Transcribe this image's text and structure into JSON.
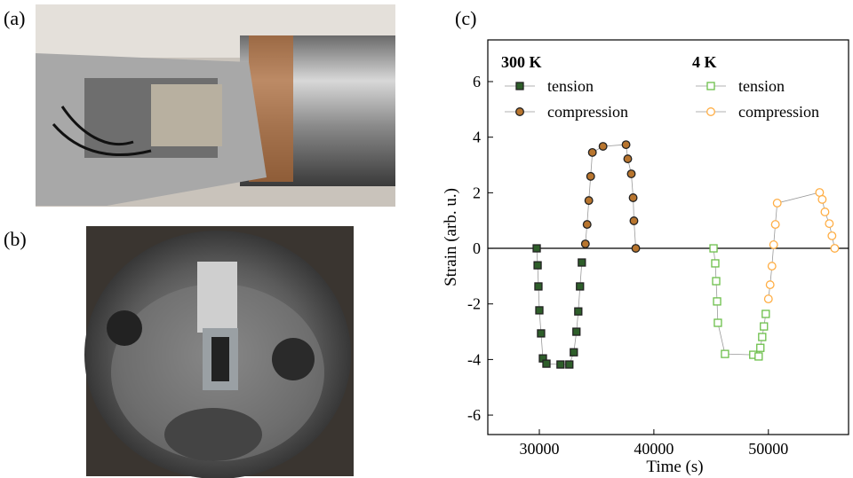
{
  "panel_labels": [
    "(a)",
    "(b)",
    "(c)"
  ],
  "chart_data": {
    "type": "scatter",
    "xlabel": "Time (s)",
    "ylabel": "Strain (arb. u.)",
    "xlim": [
      25500,
      57000
    ],
    "ylim": [
      -6.7,
      7.5
    ],
    "xticks": [
      30000,
      40000,
      50000
    ],
    "yticks": [
      -6,
      -4,
      -2,
      0,
      2,
      4,
      6
    ],
    "legend_titles": [
      "300 K",
      "4 K"
    ],
    "series": [
      {
        "name": "tension",
        "color": "#2e5e2a",
        "marker": "square",
        "filled": true,
        "x": [
          29770,
          29850,
          29920,
          30000,
          30150,
          30310,
          30620,
          31850,
          32620,
          33010,
          33240,
          33400,
          33550,
          33710
        ],
        "values": [
          0,
          -0.61,
          -1.37,
          -2.23,
          -3.06,
          -3.96,
          -4.15,
          -4.18,
          -4.18,
          -3.74,
          -3.0,
          -2.27,
          -1.37,
          -0.51
        ]
      },
      {
        "name": "compression",
        "color": "#b8752e",
        "marker": "circle",
        "filled": true,
        "x": [
          34020,
          34170,
          34320,
          34480,
          34630,
          35560,
          37570,
          37720,
          38030,
          38190,
          38260,
          38420
        ],
        "values": [
          0.16,
          0.86,
          1.72,
          2.59,
          3.45,
          3.67,
          3.73,
          3.22,
          2.68,
          1.82,
          0.99,
          0
        ]
      },
      {
        "name": "tension",
        "color": "#6cbf4a",
        "marker": "square",
        "filled": false,
        "x": [
          45210,
          45360,
          45440,
          45520,
          45590,
          46210,
          48680,
          49150,
          49300,
          49460,
          49610,
          49770
        ],
        "values": [
          0,
          -0.54,
          -1.18,
          -1.91,
          -2.68,
          -3.8,
          -3.83,
          -3.89,
          -3.58,
          -3.19,
          -2.81,
          -2.36
        ]
      },
      {
        "name": "compression",
        "color": "#ffae45",
        "marker": "circle",
        "filled": false,
        "x": [
          50000,
          50150,
          50310,
          50460,
          50610,
          50770,
          54470,
          54700,
          54940,
          55320,
          55550,
          55790
        ],
        "values": [
          -1.82,
          -1.31,
          -0.64,
          0.13,
          0.86,
          1.63,
          2.01,
          1.76,
          1.31,
          0.89,
          0.45,
          0
        ]
      }
    ]
  }
}
